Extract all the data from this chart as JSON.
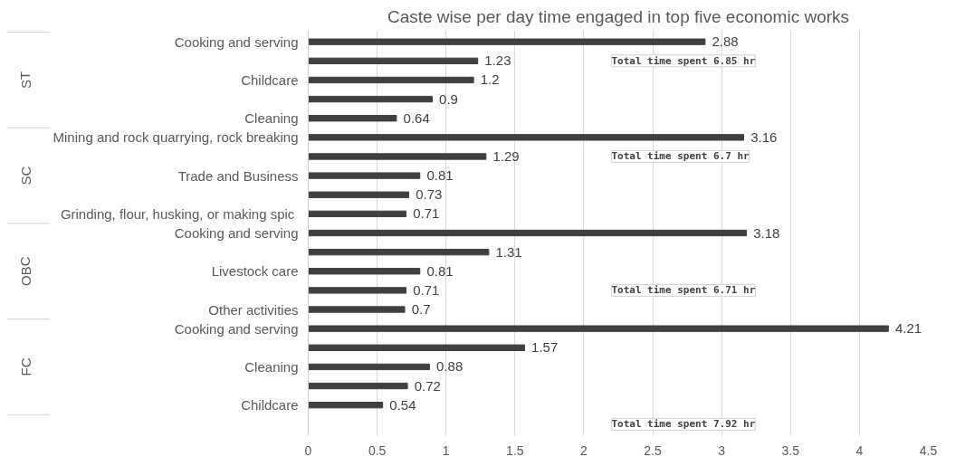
{
  "chart_data": {
    "type": "bar",
    "orientation": "horizontal",
    "title": "Caste wise per day time engaged in top five economic works",
    "categories": [
      "Cooking and serving",
      null,
      "Childcare",
      null,
      "Cleaning",
      "Mining and rock quarrying, rock breaking",
      null,
      "Trade and Business",
      null,
      "Grinding, flour, husking,  or making spic",
      "Cooking and serving",
      null,
      "Livestock care",
      null,
      "Other activities",
      "Cooking and serving",
      null,
      "Cleaning",
      null,
      "Childcare"
    ],
    "values": [
      2.88,
      1.23,
      1.2,
      0.9,
      0.64,
      3.16,
      1.29,
      0.81,
      0.73,
      0.71,
      3.18,
      1.31,
      0.81,
      0.71,
      0.7,
      4.21,
      1.57,
      0.88,
      0.72,
      0.54
    ],
    "color": "#404040",
    "data_labels": true,
    "xlim": [
      0,
      4.5
    ],
    "xticks": [
      0,
      0.5,
      1,
      1.5,
      2,
      2.5,
      3,
      3.5,
      4,
      4.5
    ],
    "grid": "x",
    "annotations": [
      "ST",
      "SC",
      "OBC",
      "FC",
      "Total time spent 6.85 hr",
      "Total time spent 6.7 hr",
      "Total time spent 6.71 hr",
      "Total time spent 7.92 hr"
    ]
  }
}
